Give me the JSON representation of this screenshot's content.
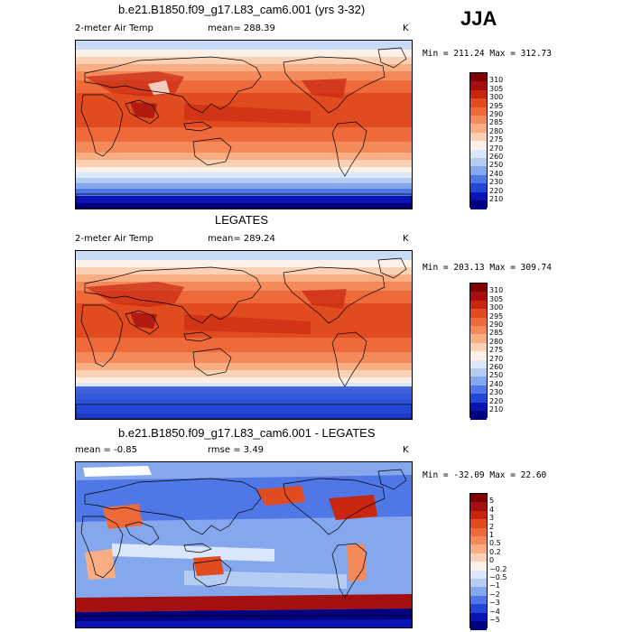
{
  "season": "JJA",
  "panels": [
    {
      "title": "b.e21.B1850.f09_g17.L83_cam6.001 (yrs 3-32)",
      "left_label": "2-meter Air Temp",
      "center_label": "mean=  288.39",
      "right_label": "K",
      "minmax": "Min = 211.24 Max = 312.73",
      "colorbar": {
        "labels": [
          "310",
          "305",
          "300",
          "295",
          "290",
          "285",
          "280",
          "275",
          "270",
          "260",
          "250",
          "240",
          "230",
          "220",
          "210"
        ],
        "colors": [
          "#7f0000",
          "#a50f0f",
          "#c8260f",
          "#e04b1f",
          "#ee6a3b",
          "#f48a5a",
          "#f9ad83",
          "#fbd1b5",
          "#fdf0e6",
          "#dbe8fb",
          "#b5cdf3",
          "#84a7ee",
          "#4f78e6",
          "#2346d6",
          "#0a14b4",
          "#000080"
        ]
      },
      "map_type": "temperature"
    },
    {
      "title": "LEGATES",
      "left_label": "2-meter Air Temp",
      "center_label": "mean=  289.24",
      "right_label": "K",
      "minmax": "Min = 203.13 Max = 309.74",
      "colorbar": {
        "labels": [
          "310",
          "305",
          "300",
          "295",
          "290",
          "285",
          "280",
          "275",
          "270",
          "260",
          "250",
          "240",
          "230",
          "220",
          "210"
        ],
        "colors": [
          "#7f0000",
          "#a50f0f",
          "#c8260f",
          "#e04b1f",
          "#ee6a3b",
          "#f48a5a",
          "#f9ad83",
          "#fbd1b5",
          "#fdf0e6",
          "#dbe8fb",
          "#b5cdf3",
          "#84a7ee",
          "#4f78e6",
          "#2346d6",
          "#0a14b4",
          "#000080"
        ]
      },
      "map_type": "temperature"
    },
    {
      "title": "b.e21.B1850.f09_g17.L83_cam6.001 - LEGATES",
      "left_label": "mean =   -0.85",
      "center_label": "rmse =    3.49",
      "right_label": "K",
      "minmax": "Min = -32.09 Max =  22.60",
      "colorbar": {
        "labels": [
          "5",
          "4",
          "3",
          "2",
          "1",
          "0.5",
          "0.2",
          "0",
          "−0.2",
          "−0.5",
          "−1",
          "−2",
          "−3",
          "−4",
          "−5"
        ],
        "colors": [
          "#7f0000",
          "#a50f0f",
          "#c8260f",
          "#e04b1f",
          "#ee6a3b",
          "#f48a5a",
          "#f9ad83",
          "#fbd1b5",
          "#fdf0e6",
          "#dbe8fb",
          "#b5cdf3",
          "#84a7ee",
          "#4f78e6",
          "#2346d6",
          "#0a14b4",
          "#000080"
        ]
      },
      "map_type": "difference"
    }
  ]
}
